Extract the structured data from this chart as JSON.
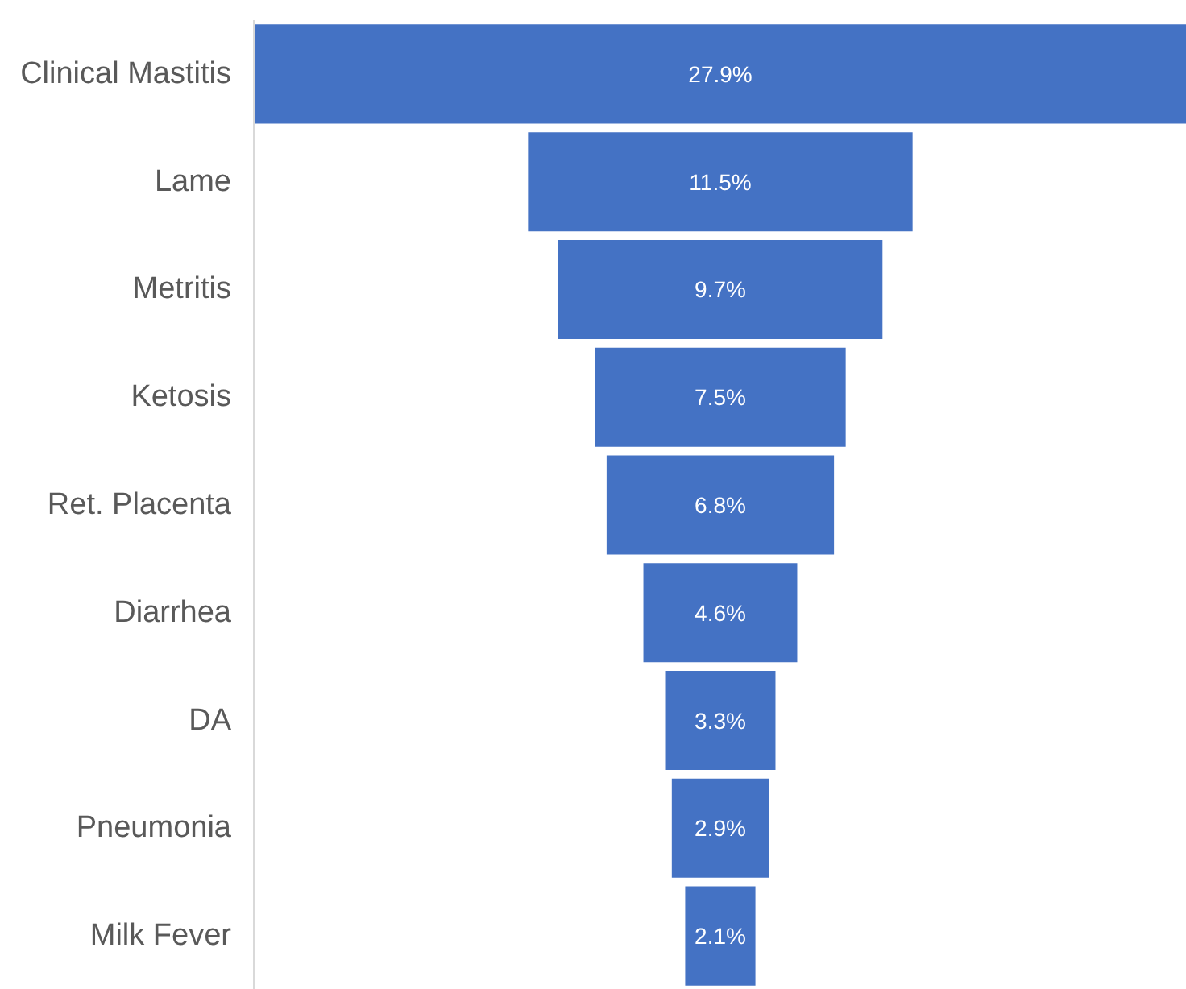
{
  "chart_data": {
    "type": "other",
    "categories": [
      "Clinical Mastitis",
      "Lame",
      "Metritis",
      "Ketosis",
      "Ret. Placenta",
      "Diarrhea",
      "DA",
      "Pneumonia",
      "Milk Fever"
    ],
    "values": [
      27.9,
      11.5,
      9.7,
      7.5,
      6.8,
      4.6,
      3.3,
      2.9,
      2.1
    ],
    "value_labels": [
      "27.9%",
      "11.5%",
      "9.7%",
      "7.5%",
      "6.8%",
      "4.6%",
      "3.3%",
      "2.9%",
      "2.1%"
    ],
    "color": "#4472c4"
  }
}
